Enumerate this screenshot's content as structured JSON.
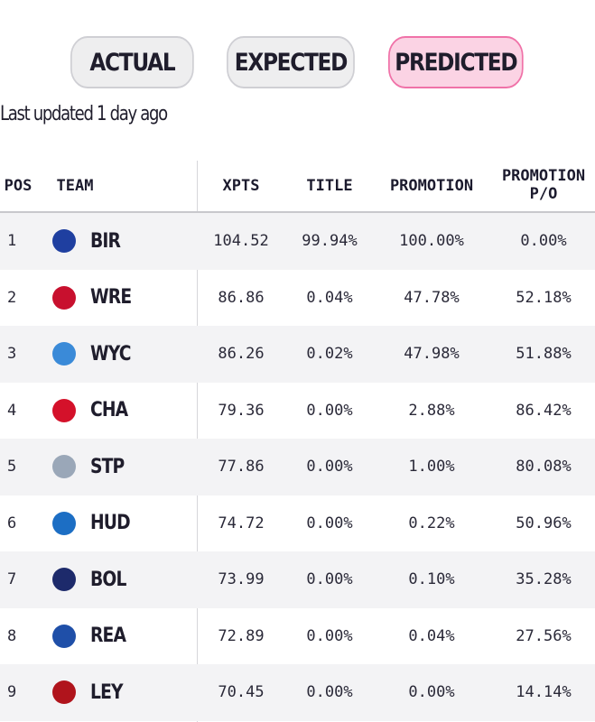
{
  "tabs": [
    {
      "label": "ACTUAL",
      "active": false
    },
    {
      "label": "EXPECTED",
      "active": false
    },
    {
      "label": "PREDICTED",
      "active": true
    }
  ],
  "updated": "Last updated 1 day ago",
  "columns": {
    "pos": "POS",
    "team": "TEAM",
    "xpts": "XPTS",
    "title": "TITLE",
    "promotion": "PROMOTION",
    "promotion_po_line1": "PROMOTION",
    "promotion_po_line2": "P/O"
  },
  "rows": [
    {
      "pos": "1",
      "team": "BIR",
      "xpts": "104.52",
      "title": "99.94%",
      "promotion": "100.00%",
      "promotion_po": "0.00%",
      "crest_color": "#1f3fa0",
      "crest_icon": "globe-crest-icon"
    },
    {
      "pos": "2",
      "team": "WRE",
      "xpts": "86.86",
      "title": "0.04%",
      "promotion": "47.78%",
      "promotion_po": "52.18%",
      "crest_color": "#c8102e",
      "crest_icon": "dragon-crest-icon"
    },
    {
      "pos": "3",
      "team": "WYC",
      "xpts": "86.26",
      "title": "0.02%",
      "promotion": "47.98%",
      "promotion_po": "51.88%",
      "crest_color": "#3a8ad8",
      "crest_icon": "swan-crest-icon"
    },
    {
      "pos": "4",
      "team": "CHA",
      "xpts": "79.36",
      "title": "0.00%",
      "promotion": "2.88%",
      "promotion_po": "86.42%",
      "crest_color": "#d4112a",
      "crest_icon": "sword-crest-icon"
    },
    {
      "pos": "5",
      "team": "STP",
      "xpts": "77.86",
      "title": "0.00%",
      "promotion": "1.00%",
      "promotion_po": "80.08%",
      "crest_color": "#9aa7b8",
      "crest_icon": "hat-crest-icon"
    },
    {
      "pos": "6",
      "team": "HUD",
      "xpts": "74.72",
      "title": "0.00%",
      "promotion": "0.22%",
      "promotion_po": "50.96%",
      "crest_color": "#1c6ec4",
      "crest_icon": "terrier-crest-icon"
    },
    {
      "pos": "7",
      "team": "BOL",
      "xpts": "73.99",
      "title": "0.00%",
      "promotion": "0.10%",
      "promotion_po": "35.28%",
      "crest_color": "#1d2a6b",
      "crest_icon": "ball-crest-icon"
    },
    {
      "pos": "8",
      "team": "REA",
      "xpts": "72.89",
      "title": "0.00%",
      "promotion": "0.04%",
      "promotion_po": "27.56%",
      "crest_color": "#1f4fa8",
      "crest_icon": "stripes-crest-icon"
    },
    {
      "pos": "9",
      "team": "LEY",
      "xpts": "70.45",
      "title": "0.00%",
      "promotion": "0.00%",
      "promotion_po": "14.14%",
      "crest_color": "#b0141c",
      "crest_icon": "dragon-crest-icon"
    }
  ]
}
